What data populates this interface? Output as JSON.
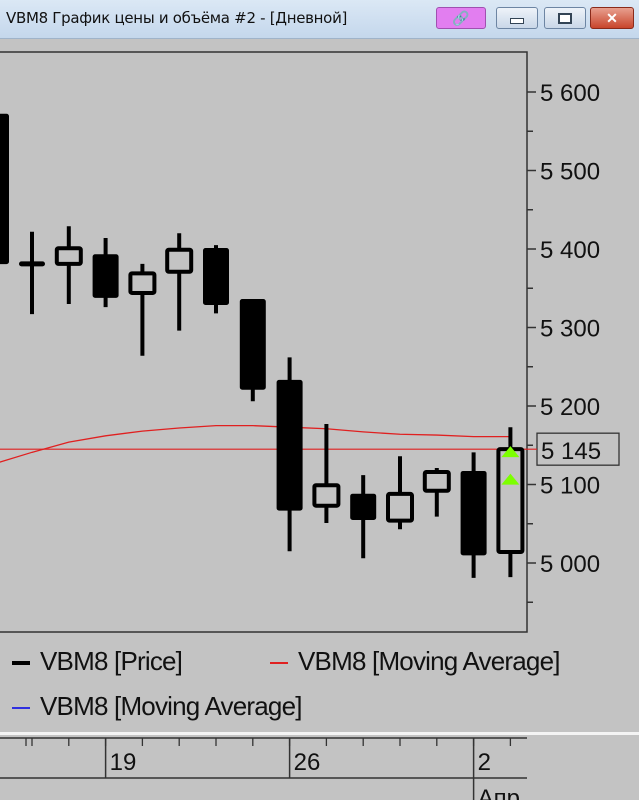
{
  "window": {
    "title": "VBM8 График цены и объёма #2 - [Дневной]",
    "buttons": {
      "link": "link-icon",
      "minimize": "minimize-icon",
      "maximize": "maximize-icon",
      "close": "✕"
    }
  },
  "legend": [
    {
      "label": "VBM8 [Price]",
      "color": "#000000"
    },
    {
      "label": "VBM8 [Moving Average]",
      "color": "#e02020"
    },
    {
      "label": "VBM8 [Moving Average]",
      "color": "#3030e0"
    }
  ],
  "chart_data": {
    "type": "candlestick",
    "y_ticks": [
      "5 600",
      "5 500",
      "5 400",
      "5 300",
      "5 200",
      "5 100",
      "5 000"
    ],
    "y_tick_values": [
      5600,
      5500,
      5400,
      5300,
      5200,
      5100,
      5000
    ],
    "ylim": [
      4920,
      5650
    ],
    "last_price_label": "5 145",
    "last_price": 5145,
    "x_ticks": [
      {
        "label": "19",
        "candle": 3
      },
      {
        "label": "26",
        "candle": 8
      },
      {
        "label": "2",
        "candle": 13,
        "sublabel": "Апр"
      }
    ],
    "candles": [
      {
        "o": 5571,
        "h": 5571,
        "l": 5382,
        "c": 5382
      },
      {
        "o": 5383,
        "h": 5422,
        "l": 5317,
        "c": 5383
      },
      {
        "o": 5381,
        "h": 5429,
        "l": 5330,
        "c": 5401
      },
      {
        "o": 5392,
        "h": 5414,
        "l": 5326,
        "c": 5339
      },
      {
        "o": 5344,
        "h": 5381,
        "l": 5264,
        "c": 5369
      },
      {
        "o": 5371,
        "h": 5420,
        "l": 5296,
        "c": 5399
      },
      {
        "o": 5400,
        "h": 5405,
        "l": 5318,
        "c": 5330
      },
      {
        "o": 5335,
        "h": 5335,
        "l": 5206,
        "c": 5222
      },
      {
        "o": 5232,
        "h": 5262,
        "l": 5015,
        "c": 5068
      },
      {
        "o": 5073,
        "h": 5177,
        "l": 5051,
        "c": 5099
      },
      {
        "o": 5087,
        "h": 5112,
        "l": 5006,
        "c": 5056
      },
      {
        "o": 5054,
        "h": 5136,
        "l": 5043,
        "c": 5088
      },
      {
        "o": 5092,
        "h": 5121,
        "l": 5059,
        "c": 5116
      },
      {
        "o": 5116,
        "h": 5141,
        "l": 4981,
        "c": 5011
      },
      {
        "o": 5014,
        "h": 5173,
        "l": 4982,
        "c": 5145
      }
    ],
    "moving_average": [
      5127,
      5141,
      5154,
      5162,
      5168,
      5172,
      5175,
      5175,
      5173,
      5171,
      5167,
      5164,
      5163,
      5161,
      5161
    ],
    "signals": [
      {
        "candle": 14,
        "price": 5145,
        "type": "up-triangle"
      },
      {
        "candle": 14,
        "price": 5110,
        "type": "up-triangle"
      }
    ],
    "colors": {
      "bear": "#000000",
      "bull_fill": "#c3c3c3",
      "ma": "#e02020",
      "signal": "#7cff00"
    }
  }
}
